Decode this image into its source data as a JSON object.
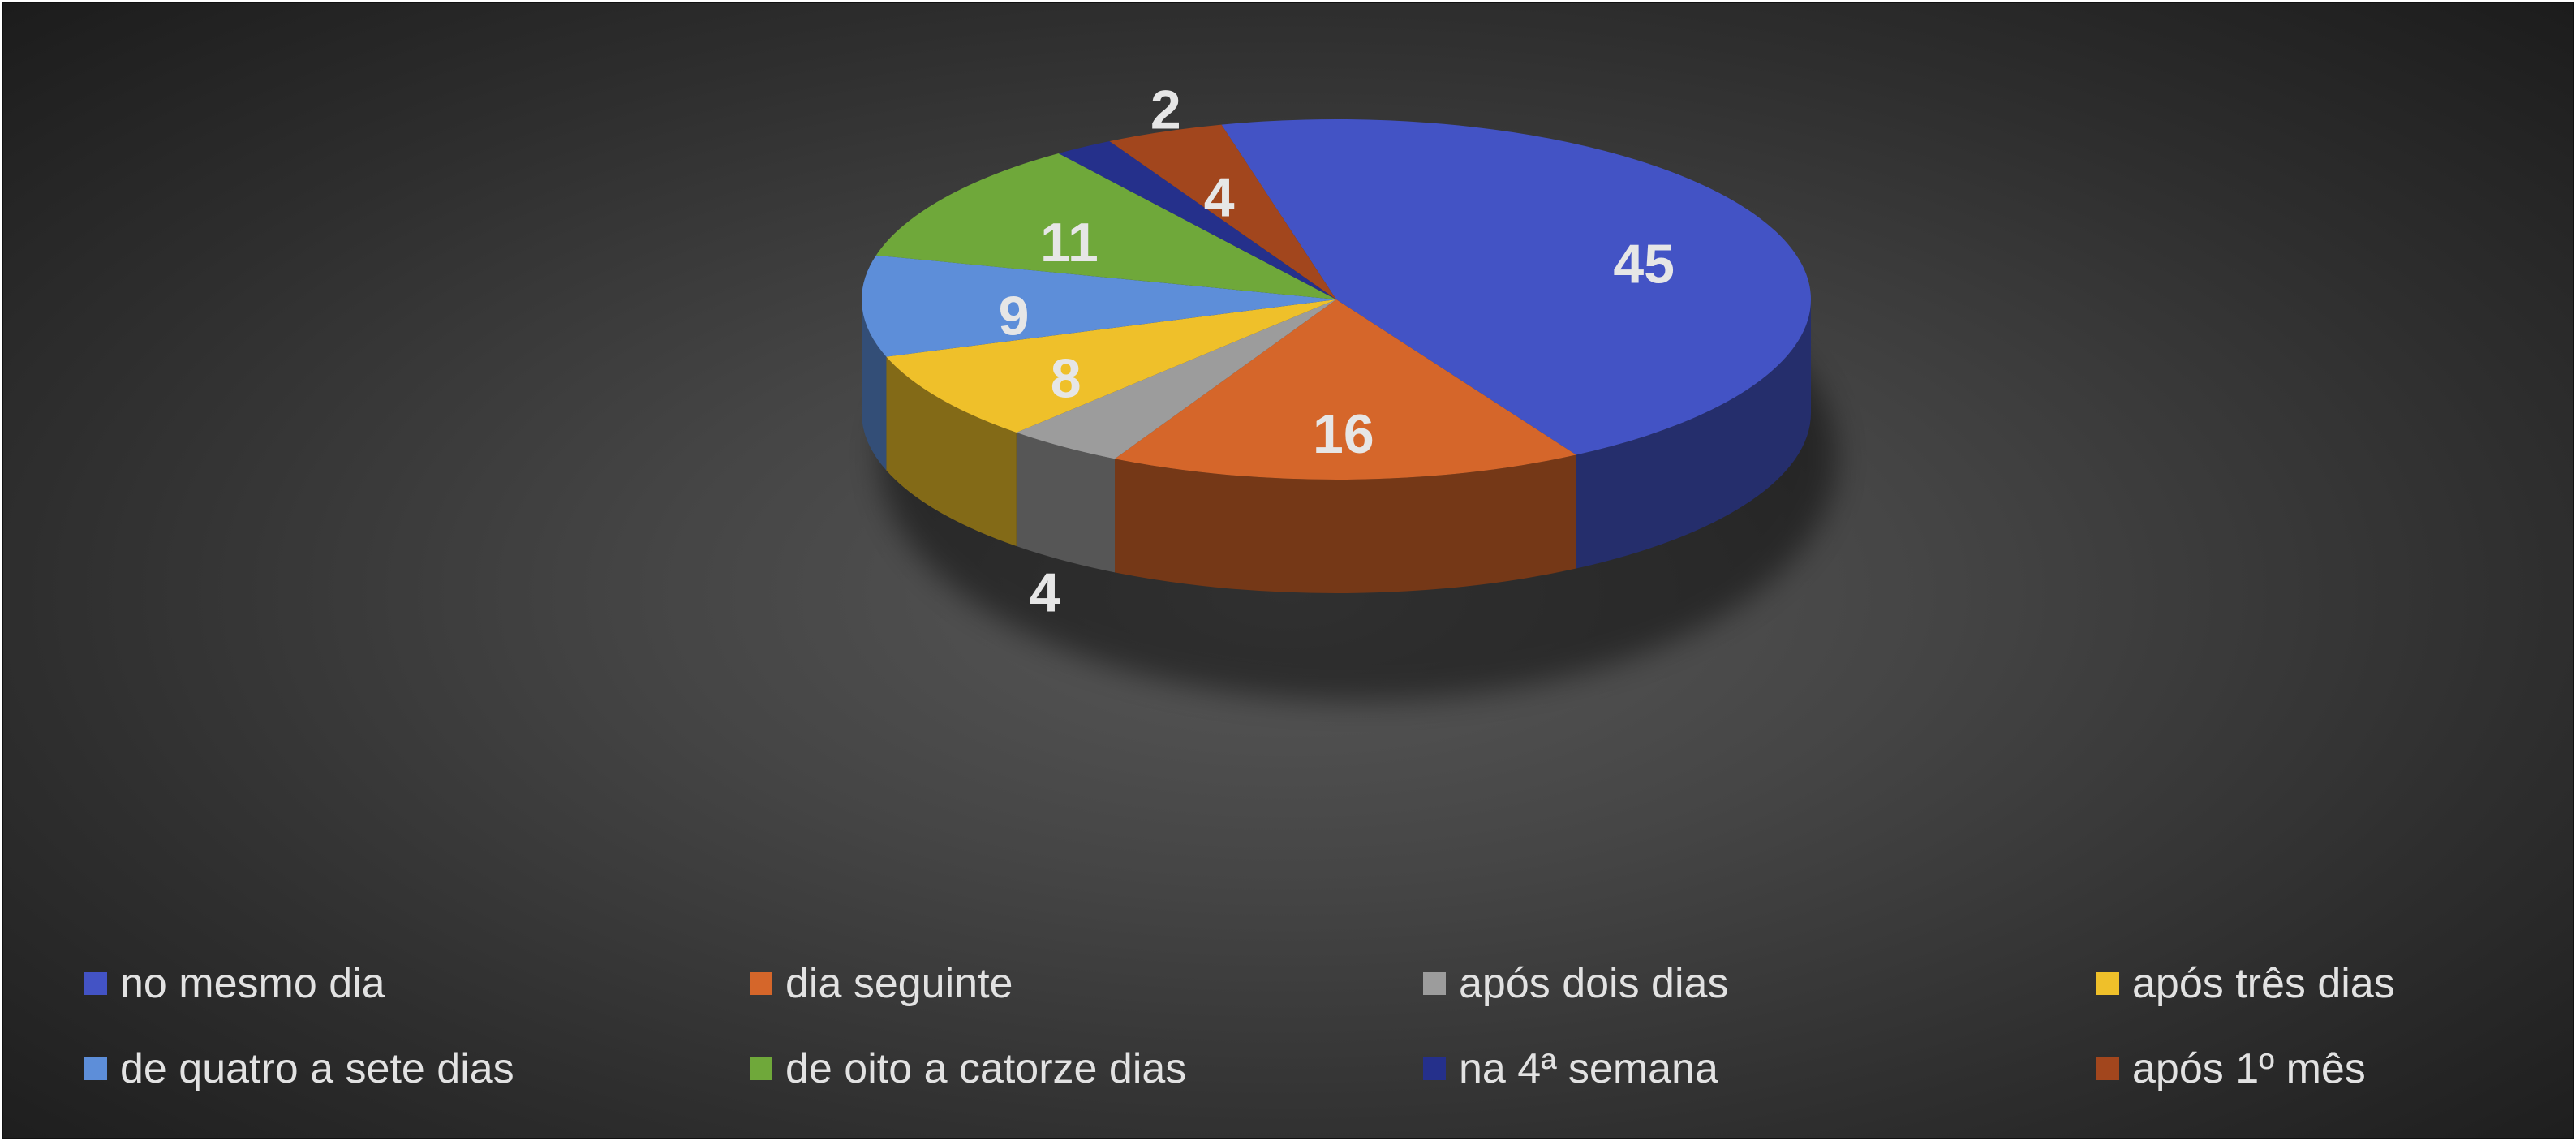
{
  "chart_data": {
    "type": "pie",
    "title": "",
    "categories": [
      "no mesmo dia",
      "dia seguinte",
      "após dois dias",
      "após três dias",
      "de quatro a sete dias",
      "de oito a catorze dias",
      "na 4ª semana",
      "após 1º mês"
    ],
    "values": [
      45,
      16,
      4,
      8,
      9,
      11,
      2,
      4
    ],
    "colors": [
      "#4353c5",
      "#d5662a",
      "#9c9c9c",
      "#efc02a",
      "#5d8ed9",
      "#6fa83a",
      "#25308b",
      "#a2461d"
    ],
    "three_d": true,
    "data_labels": true,
    "legend": {
      "position": "bottom"
    }
  }
}
